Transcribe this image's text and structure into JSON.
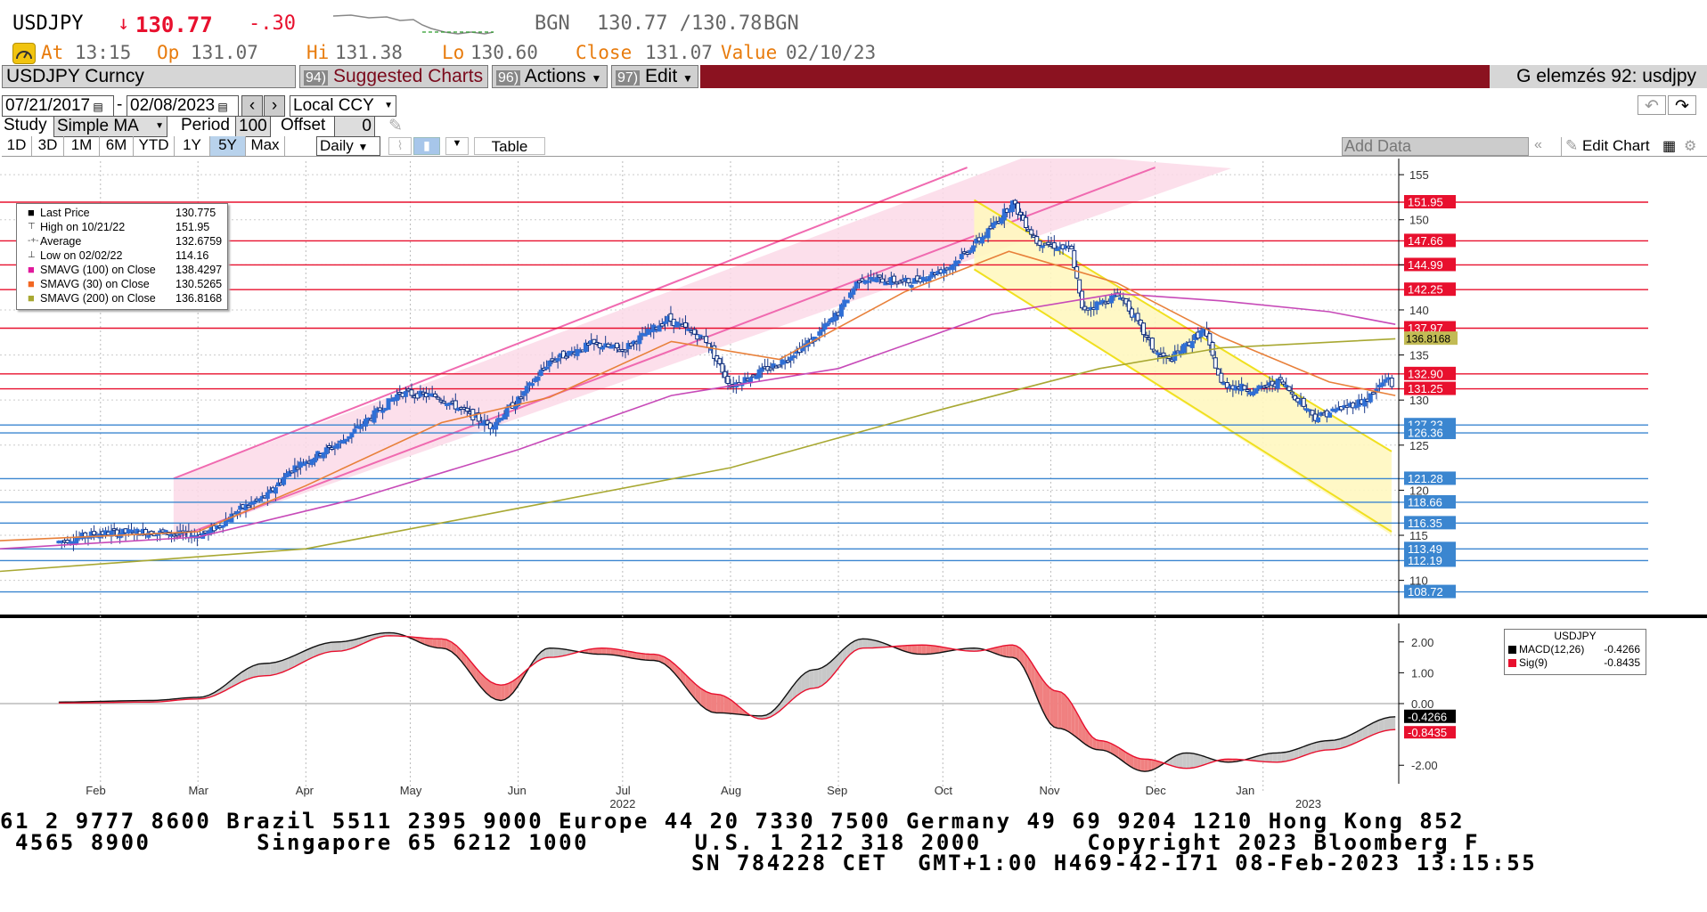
{
  "header": {
    "ticker": "USDJPY",
    "arrow": "↓",
    "last": "130.77",
    "change": "-.30",
    "source1": "BGN",
    "bid_ask": "130.77 /130.78",
    "source2": "BGN",
    "at_label": "At",
    "at": "13:15",
    "op_label": "Op",
    "op": "131.07",
    "hi_label": "Hi",
    "hi": "131.38",
    "lo_label": "Lo",
    "lo": "130.60",
    "close_label": "Close",
    "close": "131.07",
    "value_label": "Value",
    "value": "02/10/23"
  },
  "toolbar": {
    "security": "USDJPY Curncy",
    "suggested_num": "94)",
    "suggested": "Suggested Charts",
    "actions_num": "96)",
    "actions": "Actions",
    "edit_num": "97)",
    "edit": "Edit",
    "title": "G elemzés 92: usdjpy"
  },
  "controls": {
    "start_date": "07/21/2017",
    "end_date": "02/08/2023",
    "currency": "Local CCY",
    "study_label": "Study",
    "study": "Simple MA",
    "period_label": "Period",
    "period": "100",
    "offset_label": "Offset",
    "offset": "0",
    "tabs": [
      "1D",
      "3D",
      "1M",
      "6M",
      "YTD",
      "1Y",
      "5Y",
      "Max"
    ],
    "active_tab": "5Y",
    "frequency": "Daily",
    "table": "Table",
    "add_data": "Add Data",
    "edit_chart": "Edit Chart"
  },
  "colors": {
    "hlines_red": "#e8102e",
    "hlines_blue": "#3b86d0",
    "sma100": "#c74ab8",
    "sma30": "#e8803a",
    "sma200": "#a8a832",
    "candle_up": "#2f6fd6",
    "candle_down": "#0a2a7a"
  },
  "legend": {
    "rows": [
      {
        "label": "Last Price",
        "value": "130.775"
      },
      {
        "label": "High on 10/21/22",
        "value": "151.95"
      },
      {
        "label": "Average",
        "value": "132.6759"
      },
      {
        "label": "Low on 02/02/22",
        "value": "114.16"
      },
      {
        "label": "SMAVG (100)  on Close",
        "value": "138.4297"
      },
      {
        "label": "SMAVG (30)  on Close",
        "value": "130.5265"
      },
      {
        "label": "SMAVG (200)  on Close",
        "value": "136.8168"
      }
    ]
  },
  "macd_legend": {
    "title": "USDJPY",
    "rows": [
      {
        "label": "MACD(12,26)",
        "value": "-0.4266"
      },
      {
        "label": "Sig(9)",
        "value": "-0.8435"
      }
    ]
  },
  "chart_data": {
    "type": "line",
    "title": "USDJPY Curncy",
    "price_axis": {
      "range": [
        107,
        156
      ],
      "ticks": [
        155,
        150,
        145,
        140,
        135,
        130,
        125,
        120,
        115,
        110
      ]
    },
    "x_months": [
      "Feb",
      "Mar",
      "Apr",
      "May",
      "Jun",
      "Jul",
      "Aug",
      "Sep",
      "Oct",
      "Nov",
      "Dec",
      "Jan"
    ],
    "x_years": [
      "2022",
      "2023"
    ],
    "price_series": {
      "name": "Last Price",
      "x": [
        "2022-01-20",
        "2022-01-31",
        "2022-02-14",
        "2022-02-28",
        "2022-03-04",
        "2022-03-14",
        "2022-03-21",
        "2022-03-28",
        "2022-04-11",
        "2022-04-19",
        "2022-04-28",
        "2022-05-09",
        "2022-05-24",
        "2022-06-01",
        "2022-06-10",
        "2022-06-22",
        "2022-07-01",
        "2022-07-14",
        "2022-07-25",
        "2022-08-01",
        "2022-08-15",
        "2022-08-25",
        "2022-09-01",
        "2022-09-07",
        "2022-09-22",
        "2022-10-03",
        "2022-10-14",
        "2022-10-21",
        "2022-10-28",
        "2022-11-07",
        "2022-11-10",
        "2022-11-21",
        "2022-12-01",
        "2022-12-05",
        "2022-12-15",
        "2022-12-20",
        "2022-12-30",
        "2023-01-06",
        "2023-01-16",
        "2023-01-31",
        "2023-02-06",
        "2023-02-08"
      ],
      "y": [
        114.3,
        115.2,
        115.4,
        115.0,
        115.3,
        118.1,
        119.4,
        122.4,
        125.3,
        127.9,
        130.8,
        130.4,
        127.1,
        130.0,
        134.3,
        136.2,
        135.6,
        139.0,
        136.6,
        131.6,
        134.1,
        136.8,
        139.7,
        143.5,
        143.1,
        144.8,
        148.7,
        151.9,
        147.6,
        146.6,
        140.0,
        141.7,
        135.3,
        134.4,
        137.8,
        131.8,
        131.1,
        132.1,
        128.1,
        130.1,
        132.6,
        130.8
      ]
    },
    "sma100": {
      "name": "SMAVG (100)",
      "y_start": 113.5,
      "y_end": 138.4
    },
    "sma30": {
      "name": "SMAVG (30)",
      "y_start": 114.4,
      "y_end": 130.5
    },
    "sma200": {
      "name": "SMAVG (200)",
      "y_start": 111.0,
      "y_end": 136.8
    },
    "hlines": [
      {
        "value": 151.95,
        "label": "151.95",
        "color": "red"
      },
      {
        "value": 147.66,
        "label": "147.66",
        "color": "red"
      },
      {
        "value": 144.99,
        "label": "144.99",
        "color": "red"
      },
      {
        "value": 142.25,
        "label": "142.25",
        "color": "red"
      },
      {
        "value": 137.97,
        "label": "137.97",
        "color": "red"
      },
      {
        "value": 132.9,
        "label": "132.90",
        "color": "red"
      },
      {
        "value": 131.25,
        "label": "131.25",
        "color": "red"
      },
      {
        "value": 127.23,
        "label": "127.23",
        "color": "blue"
      },
      {
        "value": 126.36,
        "label": "126.36",
        "color": "blue"
      },
      {
        "value": 121.28,
        "label": "121.28",
        "color": "blue"
      },
      {
        "value": 118.66,
        "label": "118.66",
        "color": "blue"
      },
      {
        "value": 116.35,
        "label": "116.35",
        "color": "blue"
      },
      {
        "value": 113.49,
        "label": "113.49",
        "color": "blue"
      },
      {
        "value": 112.19,
        "label": "112.19",
        "color": "blue"
      },
      {
        "value": 108.72,
        "label": "108.72",
        "color": "blue"
      }
    ],
    "value_tags": [
      {
        "label": "136.8168",
        "value": 136.82
      }
    ],
    "macd": {
      "range": [
        -2.6,
        2.6
      ],
      "ticks": [
        2.0,
        1.0,
        0.0,
        -2.0
      ],
      "tick_labels": [
        "2.00",
        "1.00",
        "0.00",
        "-2.00"
      ],
      "x": [
        "2022-01-20",
        "2022-02-15",
        "2022-03-01",
        "2022-03-20",
        "2022-04-10",
        "2022-04-25",
        "2022-05-10",
        "2022-05-27",
        "2022-06-10",
        "2022-06-25",
        "2022-07-10",
        "2022-07-28",
        "2022-08-10",
        "2022-08-25",
        "2022-09-08",
        "2022-09-25",
        "2022-10-10",
        "2022-10-21",
        "2022-11-03",
        "2022-11-15",
        "2022-11-28",
        "2022-12-10",
        "2022-12-22",
        "2023-01-05",
        "2023-01-20",
        "2023-02-08"
      ],
      "macd": [
        0.05,
        0.1,
        0.2,
        1.3,
        2.0,
        2.3,
        1.8,
        0.1,
        1.8,
        1.6,
        1.4,
        -0.3,
        -0.4,
        1.1,
        2.1,
        1.6,
        1.8,
        1.5,
        -0.8,
        -1.5,
        -2.2,
        -1.6,
        -1.9,
        -1.6,
        -1.2,
        -0.4266
      ],
      "signal": [
        0.02,
        0.05,
        0.15,
        0.9,
        1.7,
        2.2,
        2.1,
        0.6,
        1.5,
        1.8,
        1.6,
        0.3,
        -0.5,
        0.5,
        1.8,
        1.9,
        1.7,
        1.9,
        0.4,
        -1.2,
        -1.8,
        -2.1,
        -1.8,
        -1.9,
        -1.5,
        -0.8435
      ],
      "last_macd_label": "-0.4266",
      "last_sig_label": "-0.8435"
    }
  },
  "footer": {
    "line1": "61 2 9777 8600 Brazil 5511 2395 9000 Europe 44 20 7330 7500 Germany 49 69 9204 1210 Hong Kong 852",
    "line2": " 4565 8900       Singapore 65 6212 1000       U.S. 1 212 318 2000       Copyright 2023 Bloomberg F",
    "line3": "SN 784228 CET  GMT+1:00 H469-42-171 08-Feb-2023 13:15:55"
  }
}
